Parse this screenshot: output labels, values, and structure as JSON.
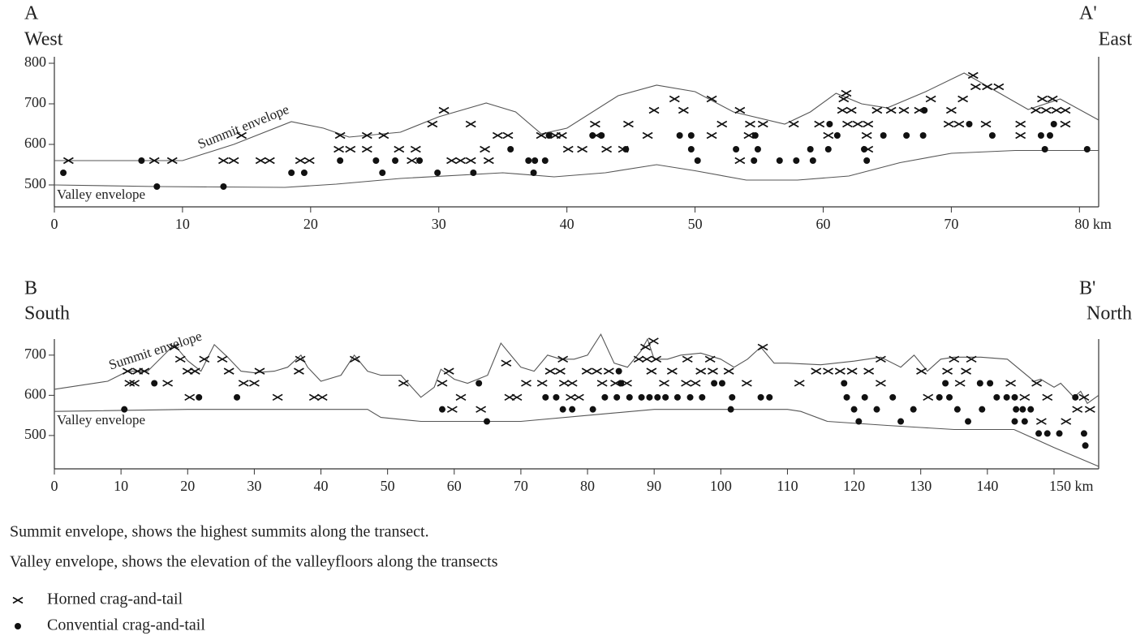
{
  "chart_data": [
    {
      "type": "scatter",
      "corner_labels": {
        "left_letter": "A",
        "left_direction": "West",
        "right_letter": "A'",
        "right_direction": "East"
      },
      "xlim": [
        0,
        81.5
      ],
      "ylim": [
        446,
        816
      ],
      "xticks": [
        0,
        10,
        20,
        30,
        40,
        50,
        60,
        70,
        {
          "value": 80,
          "label": "80 km"
        }
      ],
      "yticks": [
        500,
        600,
        700,
        800
      ],
      "series": [
        {
          "name": "Summit envelope",
          "kind": "line",
          "color": "#555555",
          "x": [
            0,
            10,
            14,
            18.5,
            21,
            23,
            27,
            30,
            33.7,
            36,
            38,
            40,
            44,
            47,
            50,
            53,
            57,
            59,
            61,
            63,
            65,
            68,
            71,
            73,
            76,
            78.5,
            81.5
          ],
          "values": [
            560,
            560,
            600,
            656,
            640,
            618,
            630,
            668,
            702,
            680,
            626,
            640,
            720,
            746,
            730,
            680,
            650,
            680,
            726,
            700,
            690,
            730,
            776,
            740,
            686,
            712,
            660
          ]
        },
        {
          "name": "Valley envelope",
          "kind": "line",
          "color": "#555555",
          "x": [
            0,
            8,
            18,
            22,
            27,
            35,
            39,
            43,
            47,
            50,
            54,
            58,
            62,
            66,
            70,
            75,
            81.5
          ],
          "values": [
            500,
            496,
            494,
            502,
            516,
            530,
            520,
            530,
            550,
            535,
            512,
            512,
            522,
            555,
            578,
            585,
            585
          ]
        },
        {
          "marker": "cross",
          "color": "#111111",
          "x": [
            1.1,
            7.8,
            9.2,
            13.2,
            14,
            14.6,
            16.1,
            16.8,
            19.2,
            19.9,
            22.3,
            22.2,
            23.1,
            24.4,
            24.4,
            25.7,
            26.9,
            27.9,
            28.2,
            29.5,
            30.4,
            31,
            31.7,
            32.5,
            32.5,
            33.6,
            33.9,
            34.6,
            35.4,
            38,
            39.1,
            39.6,
            40.1,
            41.2,
            42.2,
            42.3,
            43.1,
            44.4,
            44.8,
            46.3,
            46.8,
            48.4,
            49.1,
            51.3,
            51.3,
            52.1,
            53.5,
            53.5,
            54.3,
            54.2,
            55.3,
            57.7,
            59.7,
            60.4,
            61.6,
            61.8,
            61.5,
            62.2,
            61.9,
            62.7,
            63.5,
            63.4,
            63.5,
            64.2,
            65.3,
            66.3,
            67.5,
            68.4,
            70,
            70.9,
            69.8,
            70.6,
            71.7,
            71.9,
            72.8,
            73.7,
            72.7,
            75.4,
            75.4,
            77.1,
            77.9,
            76.6,
            77.4,
            78.2,
            78.9,
            78.9
          ],
          "values": [
            560,
            560,
            560,
            560,
            560,
            622,
            560,
            560,
            560,
            560,
            622,
            588,
            588,
            622,
            588,
            622,
            588,
            560,
            588,
            650,
            684,
            560,
            560,
            560,
            650,
            588,
            560,
            622,
            622,
            622,
            622,
            622,
            588,
            588,
            650,
            622,
            588,
            588,
            650,
            622,
            684,
            712,
            684,
            622,
            712,
            650,
            684,
            560,
            650,
            622,
            650,
            650,
            650,
            622,
            712,
            726,
            684,
            684,
            650,
            650,
            650,
            622,
            588,
            684,
            684,
            684,
            684,
            712,
            684,
            712,
            650,
            650,
            770,
            742,
            742,
            742,
            650,
            650,
            622,
            712,
            712,
            684,
            684,
            684,
            650,
            684
          ]
        },
        {
          "marker": "dot",
          "color": "#111111",
          "x": [
            0.7,
            6.8,
            8,
            13.2,
            18.5,
            19.5,
            22.3,
            25.1,
            25.6,
            26.6,
            28.5,
            29.9,
            32.7,
            35.6,
            37,
            37.4,
            37.5,
            38.3,
            38.6,
            42,
            42.7,
            44.6,
            48.8,
            49.7,
            49.7,
            50.2,
            53.2,
            54.7,
            54.9,
            54.6,
            56.6,
            57.9,
            59,
            59.2,
            60.4,
            60.5,
            61.1,
            63.2,
            63.4,
            64.7,
            66.5,
            67.8,
            67.9,
            71.4,
            73.2,
            77,
            77.7,
            77.3,
            78,
            80.6
          ],
          "values": [
            530,
            560,
            496,
            496,
            530,
            530,
            560,
            560,
            530,
            560,
            560,
            530,
            530,
            588,
            560,
            530,
            560,
            560,
            622,
            622,
            622,
            588,
            622,
            622,
            588,
            560,
            588,
            622,
            588,
            560,
            560,
            560,
            588,
            560,
            588,
            650,
            622,
            588,
            560,
            622,
            622,
            622,
            684,
            650,
            622,
            622,
            622,
            588,
            650,
            588
          ]
        }
      ]
    },
    {
      "type": "scatter",
      "corner_labels": {
        "left_letter": "B",
        "left_direction": "South",
        "right_letter": "B'",
        "right_direction": "North"
      },
      "xlim": [
        0,
        156.7
      ],
      "ylim": [
        417,
        740
      ],
      "xticks": [
        0,
        10,
        20,
        30,
        40,
        50,
        60,
        70,
        80,
        90,
        100,
        110,
        120,
        130,
        140,
        {
          "value": 150,
          "label": "150 km"
        }
      ],
      "yticks": [
        500,
        600,
        700
      ],
      "series": [
        {
          "name": "Summit envelope",
          "kind": "line",
          "color": "#555555",
          "x": [
            0,
            8,
            11,
            14,
            18,
            20,
            22,
            24,
            26,
            28,
            30,
            33,
            35,
            37,
            38,
            40,
            43,
            45,
            47,
            49,
            52,
            55,
            57,
            58,
            60,
            62,
            65,
            67,
            70,
            72,
            74,
            76,
            78,
            80,
            82,
            84,
            86,
            88,
            89,
            90,
            92,
            94,
            97,
            100,
            102,
            104,
            106,
            108,
            110,
            115,
            120,
            124,
            127,
            129,
            131,
            133,
            135,
            139,
            143,
            147,
            148,
            150,
            151,
            153,
            154,
            155,
            156.7
          ],
          "values": [
            615,
            635,
            660,
            660,
            726,
            686,
            660,
            726,
            695,
            660,
            656,
            660,
            670,
            700,
            670,
            635,
            650,
            700,
            660,
            650,
            650,
            595,
            620,
            665,
            640,
            630,
            650,
            730,
            670,
            660,
            700,
            690,
            690,
            700,
            752,
            680,
            670,
            710,
            740,
            690,
            690,
            700,
            705,
            690,
            670,
            690,
            720,
            680,
            680,
            676,
            685,
            695,
            670,
            700,
            660,
            690,
            695,
            695,
            690,
            635,
            640,
            620,
            630,
            595,
            610,
            580,
            600
          ]
        },
        {
          "name": "Valley envelope",
          "kind": "line",
          "color": "#555555",
          "x": [
            0,
            20,
            40,
            47,
            49,
            55,
            60,
            70,
            80,
            90,
            100,
            110,
            112,
            116,
            125,
            130,
            135,
            144,
            150,
            156.7
          ],
          "values": [
            560,
            565,
            565,
            565,
            545,
            535,
            535,
            535,
            550,
            565,
            565,
            565,
            560,
            535,
            525,
            520,
            515,
            515,
            470,
            423
          ]
        },
        {
          "marker": "cross",
          "color": "#111111",
          "x": [
            11,
            12.5,
            13.5,
            11.3,
            12,
            17,
            18,
            18.9,
            20,
            21.1,
            20.3,
            22.5,
            25.2,
            26.2,
            28.4,
            30,
            30.8,
            33.5,
            36.9,
            36.7,
            39,
            40.2,
            45.1,
            52.4,
            59.2,
            58.2,
            61,
            59.7,
            64,
            67.8,
            68.3,
            69.4,
            70.8,
            73.2,
            74.4,
            76.3,
            75.9,
            76.5,
            77.7,
            77.5,
            78.7,
            79.9,
            81.4,
            82.2,
            83.2,
            84.2,
            85.9,
            87.7,
            88.7,
            89.9,
            88.9,
            90.3,
            89.6,
            91.5,
            92.7,
            95,
            94.8,
            96.2,
            97,
            98.4,
            98.8,
            101.2,
            103.9,
            106.3,
            111.8,
            114.3,
            116.1,
            117.9,
            119.7,
            122.2,
            124,
            124,
            130.1,
            131.1,
            134,
            135,
            135.9,
            137.6,
            136.8,
            143.5,
            145.6,
            147.4,
            149,
            148.1,
            151.8,
            153.5,
            154.5,
            155.4
          ],
          "values": [
            660,
            660,
            660,
            630,
            630,
            630,
            720,
            690,
            660,
            660,
            595,
            690,
            690,
            660,
            630,
            630,
            660,
            595,
            690,
            660,
            595,
            595,
            690,
            630,
            660,
            630,
            595,
            565,
            565,
            680,
            595,
            595,
            630,
            630,
            660,
            690,
            660,
            630,
            630,
            595,
            595,
            660,
            660,
            630,
            660,
            630,
            630,
            690,
            720,
            735,
            690,
            690,
            660,
            630,
            660,
            690,
            630,
            630,
            660,
            690,
            660,
            660,
            630,
            720,
            630,
            660,
            660,
            660,
            660,
            660,
            690,
            630,
            660,
            595,
            660,
            690,
            630,
            690,
            660,
            630,
            595,
            630,
            595,
            535,
            535,
            565,
            595,
            565
          ]
        },
        {
          "marker": "dot",
          "color": "#111111",
          "x": [
            10.5,
            15,
            21.7,
            27.4,
            58.2,
            63.7,
            64.9,
            73.7,
            75.3,
            76.3,
            77.7,
            80.8,
            82.6,
            84.4,
            84.7,
            85,
            86.3,
            88.1,
            89.3,
            90.5,
            91.7,
            93.5,
            95.4,
            97.2,
            99,
            100.2,
            101.5,
            101.7,
            106,
            107.3,
            118.5,
            118.9,
            120,
            120.7,
            121.6,
            123.4,
            125.8,
            127,
            128.9,
            132.8,
            134.3,
            135.5,
            133.7,
            137.1,
            139.2,
            138.9,
            140.4,
            141.4,
            142.9,
            144.3,
            145.3,
            146.5,
            144.1,
            145.6,
            144.1,
            147.7,
            149,
            150.8,
            153.2,
            154.5,
            154.7
          ],
          "values": [
            565,
            630,
            595,
            595,
            565,
            630,
            535,
            595,
            595,
            565,
            565,
            565,
            595,
            595,
            660,
            630,
            595,
            595,
            595,
            595,
            595,
            595,
            595,
            595,
            630,
            630,
            565,
            595,
            595,
            595,
            630,
            595,
            565,
            535,
            595,
            565,
            595,
            535,
            565,
            595,
            595,
            565,
            630,
            535,
            565,
            630,
            630,
            595,
            595,
            565,
            565,
            565,
            595,
            535,
            535,
            505,
            505,
            505,
            595,
            505,
            475
          ]
        }
      ]
    }
  ],
  "notes": [
    "Summit envelope, shows the highest summits along the transect.",
    "Valley envelope, shows the elevation of the valleyfloors along the transects"
  ],
  "legend": [
    {
      "label": "Horned crag-and-tail",
      "marker": "cross"
    },
    {
      "label": "Convential crag-and-tail",
      "marker": "dot"
    }
  ]
}
